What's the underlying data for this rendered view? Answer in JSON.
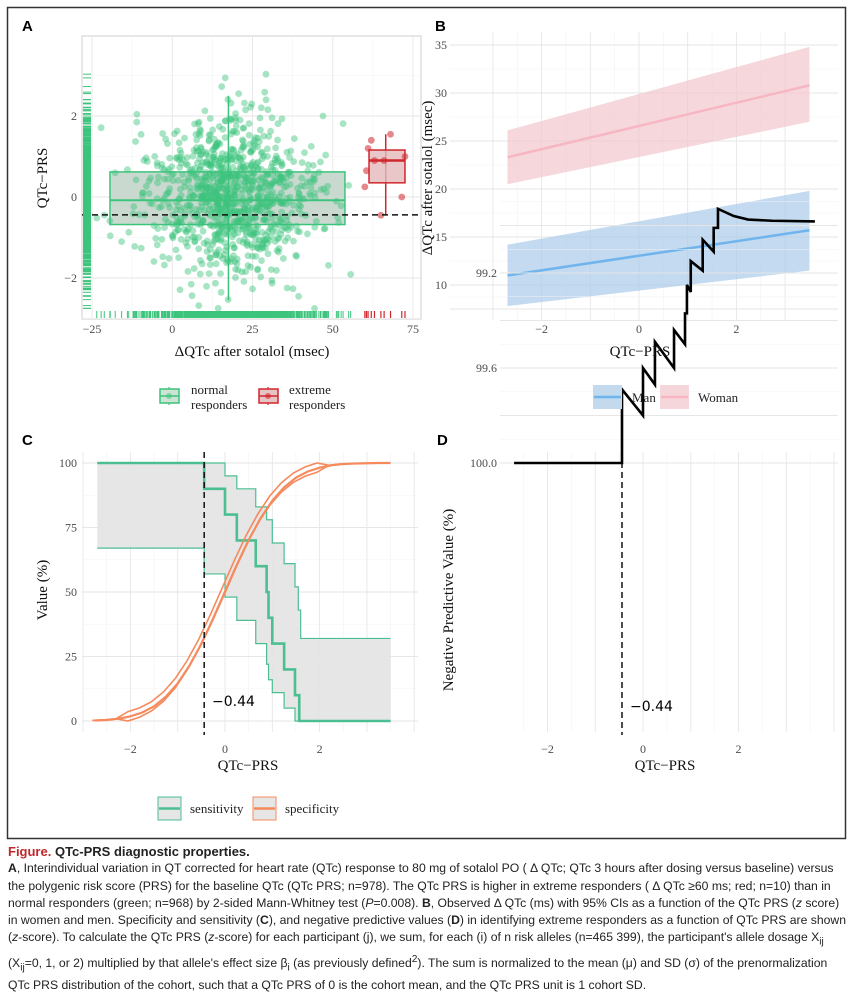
{
  "panels": {
    "a": "A",
    "b": "B",
    "c": "C",
    "d": "D"
  },
  "threshold_label": "−0.44",
  "colors": {
    "normal": "#3cc47c",
    "extreme": "#d0262d",
    "man": "#6fb4ec",
    "woman": "#f7b6c1",
    "sensitivity": "#4cbf92",
    "specificity": "#f58a5c",
    "caption_accent": "#c0282d"
  },
  "chart_data": [
    {
      "panel": "A",
      "type": "scatter",
      "xlabel": "ΔQTc after sotalol (msec)",
      "ylabel": "QTc−PRS",
      "xticks": [
        -25,
        0,
        25,
        50,
        75
      ],
      "yticks": [
        -2,
        0,
        2
      ],
      "xlim": [
        -28,
        78
      ],
      "ylim": [
        -3,
        3.8
      ],
      "threshold_y": -0.44,
      "legend": [
        {
          "label1": "normal",
          "label2": "responders"
        },
        {
          "label1": "extreme",
          "label2": "responders"
        }
      ],
      "normal_responders": {
        "n": 968,
        "x_mean": 18,
        "x_sd": 13,
        "y_mean": 0,
        "y_sd": 1,
        "box": {
          "x_low": -19.4,
          "x_high": 53.8,
          "q1": -0.68,
          "median": -0.08,
          "q3": 0.62,
          "whisker_low": -2.55,
          "whisker_high": 2.5,
          "x_center": 17.5
        }
      },
      "extreme_responders": {
        "n": 10,
        "points": [
          [
            62,
            1.4
          ],
          [
            61,
            1.2
          ],
          [
            63,
            0.9
          ],
          [
            60.5,
            0.65
          ],
          [
            60,
            0.25
          ],
          [
            72.5,
            1.0
          ],
          [
            68,
            1.55
          ],
          [
            65,
            -0.45
          ],
          [
            71.5,
            0.0
          ],
          [
            66,
            0.9
          ]
        ],
        "box": {
          "x_low": 61.3,
          "x_high": 72.5,
          "q1": 0.35,
          "median": 0.9,
          "q3": 1.16,
          "whisker_low": -0.45,
          "whisker_high": 1.55,
          "x_center": 66.5
        }
      }
    },
    {
      "panel": "B",
      "type": "line",
      "xlabel": "QTc−PRS",
      "ylabel": "ΔQTc after sotalol (msec)",
      "xticks": [
        -2,
        0,
        2
      ],
      "yticks": [
        10,
        15,
        20,
        25,
        30,
        35
      ],
      "legend": [
        "Man",
        "Woman"
      ],
      "series": [
        {
          "name": "Man",
          "x": [
            -2.7,
            3.5
          ],
          "y": [
            11.0,
            15.7
          ],
          "ci_low": [
            7.8,
            11.5
          ],
          "ci_high": [
            14.2,
            19.8
          ]
        },
        {
          "name": "Woman",
          "x": [
            -2.7,
            3.5
          ],
          "y": [
            23.3,
            30.8
          ],
          "ci_low": [
            20.5,
            27.0
          ],
          "ci_high": [
            26.1,
            34.8
          ]
        }
      ]
    },
    {
      "panel": "C",
      "type": "line",
      "xlabel": "QTc−PRS",
      "ylabel": "Value (%)",
      "xticks": [
        -2,
        0,
        2
      ],
      "yticks": [
        0,
        25,
        50,
        75,
        100
      ],
      "threshold_x": -0.44,
      "legend": [
        "sensitivity",
        "specificity"
      ],
      "sensitivity": {
        "steps": [
          [
            -2.7,
            100
          ],
          [
            -0.44,
            90
          ],
          [
            0,
            80
          ],
          [
            0.25,
            70
          ],
          [
            0.65,
            60
          ],
          [
            0.88,
            50
          ],
          [
            0.92,
            40
          ],
          [
            1.0,
            30
          ],
          [
            1.25,
            20
          ],
          [
            1.48,
            10
          ],
          [
            1.57,
            0
          ]
        ],
        "ci_high": [
          [
            -2.7,
            100
          ],
          [
            0,
            95
          ],
          [
            0.25,
            90
          ],
          [
            0.65,
            83
          ],
          [
            0.88,
            78
          ],
          [
            1.0,
            69
          ],
          [
            1.25,
            61
          ],
          [
            1.48,
            52
          ],
          [
            1.55,
            43
          ],
          [
            1.6,
            32
          ]
        ],
        "ci_low": [
          [
            -2.7,
            67
          ],
          [
            -0.44,
            57
          ],
          [
            0,
            48
          ],
          [
            0.25,
            39
          ],
          [
            0.65,
            30
          ],
          [
            0.88,
            22
          ],
          [
            0.92,
            16
          ],
          [
            1.0,
            11
          ],
          [
            1.25,
            5
          ],
          [
            1.48,
            0
          ]
        ],
        "x_end": 3.5
      },
      "specificity": {
        "x": [
          -2.75,
          -2.5,
          -2.25,
          -2,
          -1.75,
          -1.5,
          -1.25,
          -1,
          -0.75,
          -0.5,
          -0.25,
          0,
          0.25,
          0.5,
          0.75,
          1,
          1.25,
          1.5,
          1.75,
          2,
          2.25,
          2.5,
          2.75,
          3,
          3.25,
          3.5
        ],
        "y": [
          0.2,
          0.4,
          0.9,
          1.8,
          3.3,
          5.7,
          9.4,
          14.6,
          21.5,
          29.9,
          39.6,
          50,
          60.4,
          70.1,
          78.5,
          85.4,
          90.6,
          94.3,
          96.7,
          98.2,
          99.1,
          99.6,
          99.8,
          99.9,
          100,
          100
        ],
        "ci_halfwidth": 1.8
      }
    },
    {
      "panel": "D",
      "type": "line",
      "xlabel": "QTc−PRS",
      "ylabel": "Negative Predictive Value (%)",
      "xticks": [
        -2,
        0,
        2
      ],
      "yticks": [
        99.2,
        99.6,
        100.0
      ],
      "ytick_labels": [
        "99.2",
        "99.6",
        "100.0"
      ],
      "threshold_x": -0.44,
      "npv": [
        [
          -2.7,
          100
        ],
        [
          -0.44,
          100
        ],
        [
          -0.44,
          99.69
        ],
        [
          0,
          99.8
        ],
        [
          0,
          99.6
        ],
        [
          0.25,
          99.67
        ],
        [
          0.25,
          99.49
        ],
        [
          0.65,
          99.6
        ],
        [
          0.65,
          99.44
        ],
        [
          0.88,
          99.5
        ],
        [
          0.88,
          99.37
        ],
        [
          0.92,
          99.37
        ],
        [
          0.92,
          99.25
        ],
        [
          1.0,
          99.28
        ],
        [
          1.0,
          99.15
        ],
        [
          1.25,
          99.19
        ],
        [
          1.25,
          99.06
        ],
        [
          1.48,
          99.11
        ],
        [
          1.48,
          99.01
        ],
        [
          1.57,
          99.01
        ],
        [
          1.57,
          98.93
        ],
        [
          1.9,
          98.96
        ],
        [
          2.2,
          98.975
        ],
        [
          2.7,
          98.98
        ],
        [
          3.6,
          98.983
        ]
      ]
    }
  ],
  "caption": {
    "fig_label": "Figure.",
    "title": "QTc-PRS diagnostic properties.",
    "p1": "A",
    "t1": ", Interindividual variation in QT corrected for heart rate (QTc) response to 80 mg of sotalol PO ( Δ QTc; QTc 3 hours after dosing versus baseline) versus the polygenic risk score (PRS) for the baseline QTc (QTc PRS; n=978). The QTc PRS is higher in extreme responders ( Δ QTc ≥60 ms; red; n=10) than in normal responders (green; n=968) by 2-sided Mann-Whitney test (",
    "p_italic": "P",
    "t2": "=0.008). ",
    "p2": "B",
    "t3": ", Observed  Δ QTc (ms) with 95% CIs as a function of the QTc PRS (",
    "z1": "z",
    "t4": " score) in women and men. Specificity and sensitivity (",
    "p3": "C",
    "t5": "), and negative predictive values (",
    "p4": "D",
    "t6": ") in identifying extreme responders as a function of QTc PRS are shown (",
    "z2": "z",
    "t7": "-score). To calculate the QTc PRS (",
    "z3": "z",
    "t8": "-score) for each participant (j), we sum, for each (i) of n risk alleles (n=465 399), the participant's allele dosage X",
    "sub1": "ij",
    "t9": " (X",
    "sub2": "ij",
    "t10": "=0, 1, or 2) multiplied by that allele's effect size β",
    "sub3": "i",
    "t11": " (as previously defined",
    "sup1": "2",
    "t12": "). The sum is normalized to the mean (μ) and SD (σ) of the prenormalization QTc PRS distribution of the cohort, such that a QTc PRS of 0 is the cohort mean, and the QTc PRS unit is 1 cohort SD."
  }
}
